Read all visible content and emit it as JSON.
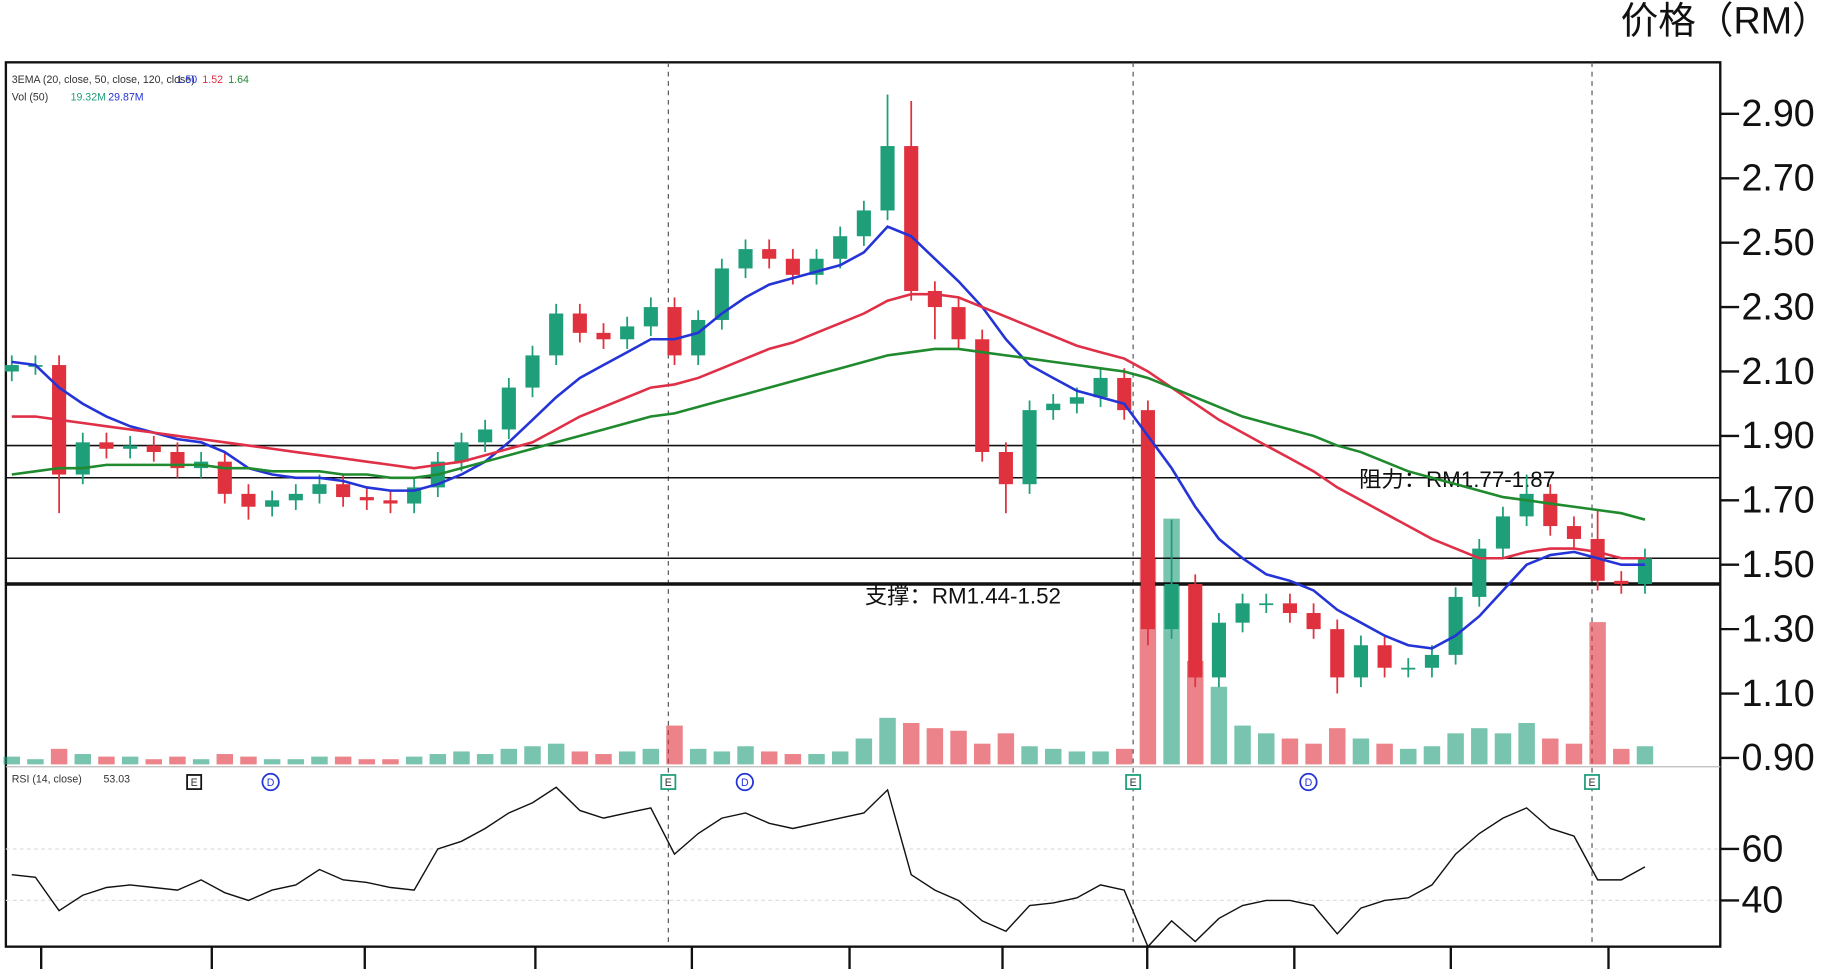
{
  "chart_data": {
    "type": "candlestick",
    "axis_title": "价格（RM）",
    "annotations": [
      "阻力：RM1.77-1.87",
      "支撑：RM1.44-1.52"
    ],
    "levels": [
      1.87,
      1.77,
      1.52,
      1.44
    ],
    "up_color": "#1f9e7a",
    "down_color": "#e0323e",
    "ylim": [
      0.88,
      3.06
    ],
    "yticks": [
      {
        "value": 2.9,
        "label": "2.90"
      },
      {
        "value": 2.7,
        "label": "2.70"
      },
      {
        "value": 2.5,
        "label": "2.50"
      },
      {
        "value": 2.3,
        "label": "2.30"
      },
      {
        "value": 2.1,
        "label": "2.10"
      },
      {
        "value": 1.9,
        "label": "1.90"
      },
      {
        "value": 1.7,
        "label": "1.70"
      },
      {
        "value": 1.5,
        "label": "1.50"
      },
      {
        "value": 1.3,
        "label": "1.30"
      },
      {
        "value": 1.1,
        "label": "1.10"
      },
      {
        "value": 0.9,
        "label": "0.90"
      }
    ],
    "open": [
      2.1,
      2.12,
      2.12,
      1.78,
      1.88,
      1.86,
      1.87,
      1.85,
      1.8,
      1.82,
      1.72,
      1.68,
      1.7,
      1.72,
      1.75,
      1.71,
      1.7,
      1.69,
      1.74,
      1.82,
      1.88,
      1.92,
      2.05,
      2.15,
      2.28,
      2.22,
      2.2,
      2.24,
      2.3,
      2.15,
      2.26,
      2.42,
      2.48,
      2.45,
      2.4,
      2.45,
      2.52,
      2.6,
      2.8,
      2.35,
      2.3,
      2.2,
      1.85,
      1.75,
      1.98,
      2.0,
      2.02,
      2.08,
      1.98,
      1.3,
      1.44,
      1.15,
      1.32,
      1.38,
      1.38,
      1.35,
      1.3,
      1.15,
      1.25,
      1.18,
      1.18,
      1.22,
      1.4,
      1.55,
      1.65,
      1.72,
      1.62,
      1.58,
      1.45,
      1.44
    ],
    "high": [
      2.15,
      2.15,
      2.15,
      1.91,
      1.91,
      1.9,
      1.9,
      1.88,
      1.85,
      1.85,
      1.75,
      1.73,
      1.75,
      1.78,
      1.78,
      1.74,
      1.73,
      1.77,
      1.85,
      1.91,
      1.95,
      2.08,
      2.18,
      2.31,
      2.31,
      2.25,
      2.27,
      2.33,
      2.33,
      2.29,
      2.45,
      2.51,
      2.51,
      2.48,
      2.48,
      2.55,
      2.63,
      2.96,
      2.94,
      2.38,
      2.33,
      2.23,
      1.88,
      2.01,
      2.03,
      2.05,
      2.11,
      2.11,
      2.01,
      1.64,
      1.47,
      1.35,
      1.41,
      1.41,
      1.41,
      1.38,
      1.33,
      1.28,
      1.28,
      1.21,
      1.25,
      1.43,
      1.58,
      1.68,
      1.78,
      1.75,
      1.65,
      1.67,
      1.48,
      1.55
    ],
    "low": [
      2.07,
      2.09,
      1.66,
      1.75,
      1.83,
      1.83,
      1.82,
      1.77,
      1.77,
      1.69,
      1.64,
      1.65,
      1.67,
      1.69,
      1.68,
      1.67,
      1.66,
      1.66,
      1.71,
      1.79,
      1.85,
      1.89,
      2.02,
      2.12,
      2.19,
      2.17,
      2.17,
      2.21,
      2.12,
      2.12,
      2.23,
      2.39,
      2.42,
      2.37,
      2.37,
      2.42,
      2.49,
      2.57,
      2.32,
      2.2,
      2.17,
      1.82,
      1.66,
      1.72,
      1.95,
      1.97,
      1.99,
      1.95,
      1.25,
      1.27,
      1.12,
      1.12,
      1.29,
      1.35,
      1.32,
      1.27,
      1.1,
      1.12,
      1.15,
      1.15,
      1.15,
      1.19,
      1.37,
      1.52,
      1.62,
      1.59,
      1.55,
      1.42,
      1.41,
      1.41
    ],
    "close": [
      2.12,
      2.12,
      1.78,
      1.88,
      1.86,
      1.87,
      1.85,
      1.8,
      1.82,
      1.72,
      1.68,
      1.7,
      1.72,
      1.75,
      1.71,
      1.7,
      1.69,
      1.74,
      1.82,
      1.88,
      1.92,
      2.05,
      2.15,
      2.28,
      2.22,
      2.2,
      2.24,
      2.3,
      2.15,
      2.26,
      2.42,
      2.48,
      2.45,
      2.4,
      2.45,
      2.52,
      2.6,
      2.8,
      2.35,
      2.3,
      2.2,
      1.85,
      1.75,
      1.98,
      2.0,
      2.02,
      2.08,
      1.98,
      1.3,
      1.44,
      1.15,
      1.32,
      1.38,
      1.38,
      1.35,
      1.3,
      1.15,
      1.25,
      1.18,
      1.18,
      1.22,
      1.4,
      1.55,
      1.65,
      1.72,
      1.62,
      1.58,
      1.45,
      1.44,
      1.52
    ],
    "ema_label": "3EMA (20, close, 50, close, 120, close)",
    "ema": [
      {
        "value_label": "1.50",
        "color": "#2434d6",
        "values": [
          2.13,
          2.12,
          2.05,
          2.0,
          1.96,
          1.93,
          1.91,
          1.89,
          1.88,
          1.85,
          1.8,
          1.78,
          1.77,
          1.77,
          1.76,
          1.74,
          1.73,
          1.73,
          1.75,
          1.78,
          1.82,
          1.88,
          1.95,
          2.02,
          2.08,
          2.12,
          2.16,
          2.2,
          2.2,
          2.22,
          2.28,
          2.33,
          2.37,
          2.39,
          2.41,
          2.43,
          2.47,
          2.55,
          2.52,
          2.45,
          2.38,
          2.3,
          2.2,
          2.12,
          2.08,
          2.04,
          2.02,
          2.0,
          1.9,
          1.8,
          1.68,
          1.58,
          1.52,
          1.47,
          1.45,
          1.42,
          1.36,
          1.32,
          1.28,
          1.25,
          1.24,
          1.28,
          1.34,
          1.42,
          1.5,
          1.53,
          1.54,
          1.52,
          1.5,
          1.5
        ]
      },
      {
        "value_label": "1.52",
        "color": "#e03048",
        "values": [
          1.96,
          1.96,
          1.95,
          1.94,
          1.93,
          1.92,
          1.91,
          1.9,
          1.89,
          1.88,
          1.87,
          1.86,
          1.85,
          1.84,
          1.83,
          1.82,
          1.81,
          1.8,
          1.81,
          1.82,
          1.84,
          1.86,
          1.88,
          1.92,
          1.96,
          1.99,
          2.02,
          2.05,
          2.06,
          2.08,
          2.11,
          2.14,
          2.17,
          2.19,
          2.22,
          2.25,
          2.28,
          2.32,
          2.34,
          2.34,
          2.33,
          2.3,
          2.27,
          2.24,
          2.21,
          2.18,
          2.16,
          2.14,
          2.1,
          2.05,
          2.0,
          1.95,
          1.91,
          1.87,
          1.83,
          1.79,
          1.74,
          1.7,
          1.66,
          1.62,
          1.58,
          1.55,
          1.52,
          1.52,
          1.54,
          1.55,
          1.55,
          1.54,
          1.52,
          1.52
        ]
      },
      {
        "value_label": "1.64",
        "color": "#1f8a2e",
        "values": [
          1.78,
          1.79,
          1.8,
          1.8,
          1.81,
          1.81,
          1.81,
          1.81,
          1.81,
          1.8,
          1.8,
          1.79,
          1.79,
          1.79,
          1.78,
          1.78,
          1.77,
          1.77,
          1.78,
          1.8,
          1.82,
          1.84,
          1.86,
          1.88,
          1.9,
          1.92,
          1.94,
          1.96,
          1.97,
          1.99,
          2.01,
          2.03,
          2.05,
          2.07,
          2.09,
          2.11,
          2.13,
          2.15,
          2.16,
          2.17,
          2.17,
          2.16,
          2.15,
          2.14,
          2.13,
          2.12,
          2.11,
          2.1,
          2.08,
          2.05,
          2.02,
          1.99,
          1.96,
          1.94,
          1.92,
          1.9,
          1.87,
          1.85,
          1.82,
          1.79,
          1.77,
          1.75,
          1.73,
          1.71,
          1.7,
          1.69,
          1.68,
          1.67,
          1.66,
          1.64
        ]
      }
    ],
    "vol_label": "Vol (50)",
    "vol_value_labels": [
      "19.32M",
      "29.87M"
    ],
    "vlim": [
      0,
      100
    ],
    "volume": [
      3,
      2,
      6,
      4,
      3,
      3,
      2,
      3,
      2,
      4,
      3,
      2,
      2,
      3,
      3,
      2,
      2,
      3,
      4,
      5,
      4,
      6,
      7,
      8,
      5,
      4,
      5,
      6,
      15,
      6,
      5,
      7,
      5,
      4,
      4,
      5,
      10,
      18,
      16,
      14,
      13,
      8,
      12,
      7,
      6,
      5,
      5,
      6,
      80,
      95,
      40,
      30,
      15,
      12,
      10,
      8,
      14,
      10,
      8,
      6,
      7,
      12,
      14,
      12,
      16,
      10,
      8,
      55,
      6,
      7
    ],
    "events": [
      "E",
      "D",
      "E",
      "D",
      "E",
      "D",
      "E"
    ],
    "rsi_label": "RSI (14, close)",
    "rsi_value_label": "53.03",
    "rsilim": [
      22,
      92
    ],
    "rsiticks": [
      60,
      40
    ],
    "rsi": [
      50,
      49,
      36,
      42,
      45,
      46,
      45,
      44,
      48,
      43,
      40,
      44,
      46,
      52,
      48,
      47,
      45,
      44,
      60,
      63,
      68,
      74,
      78,
      84,
      75,
      72,
      74,
      76,
      58,
      66,
      72,
      74,
      70,
      68,
      70,
      72,
      74,
      83,
      50,
      44,
      40,
      32,
      28,
      38,
      39,
      41,
      46,
      44,
      22,
      32,
      24,
      33,
      38,
      40,
      40,
      38,
      27,
      37,
      40,
      41,
      46,
      58,
      66,
      72,
      76,
      68,
      65,
      48,
      48,
      53
    ]
  }
}
